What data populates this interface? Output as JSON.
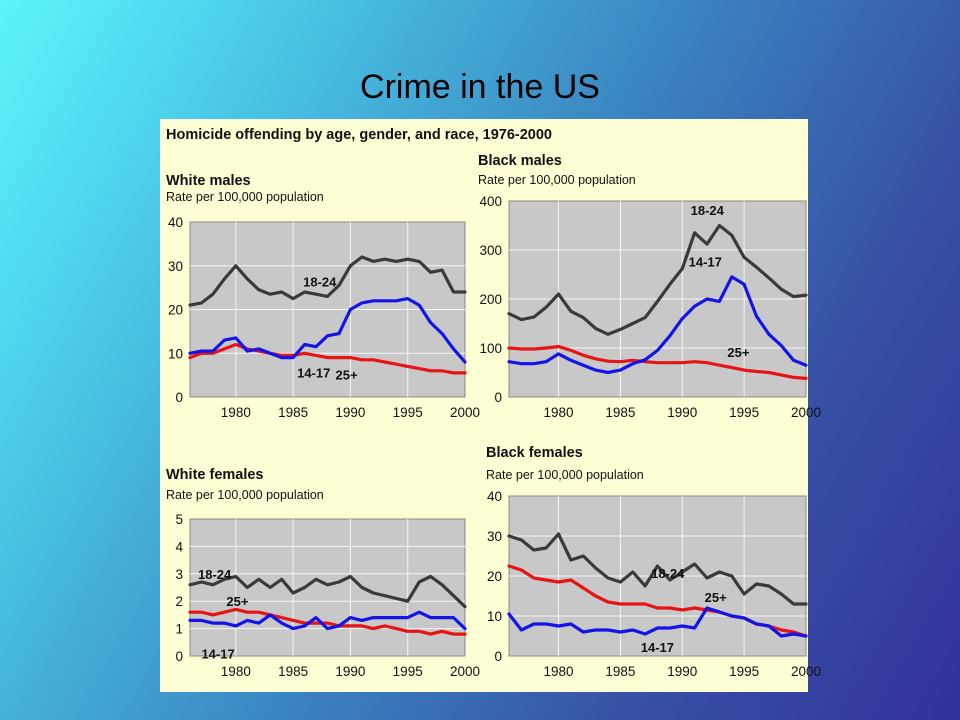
{
  "slide": {
    "title": "Crime in the US",
    "figure_title": "Homicide offending by age, gender, and race, 1976-2000"
  },
  "colors": {
    "background_start": "#5cf6fb",
    "background_end": "#33329a",
    "figure_background": "#ffffd6",
    "plot_background": "#c8c8c8",
    "series_18_24": "#3a3a3a",
    "series_14_17": "#1414e6",
    "series_25_plus": "#e61414"
  },
  "chart_data": [
    {
      "type": "line",
      "title": "White males",
      "subtitle": "Rate per 100,000 population",
      "xlim": [
        1976,
        2000
      ],
      "ylim": [
        0,
        40
      ],
      "xticks": [
        1980,
        1985,
        1990,
        1995,
        2000
      ],
      "yticks": [
        0,
        10,
        20,
        30,
        40
      ],
      "grid": true,
      "x": [
        1976,
        1977,
        1978,
        1979,
        1980,
        1981,
        1982,
        1983,
        1984,
        1985,
        1986,
        1987,
        1988,
        1989,
        1990,
        1991,
        1992,
        1993,
        1994,
        1995,
        1996,
        1997,
        1998,
        1999,
        2000
      ],
      "series": [
        {
          "name": "18-24",
          "color": "#3a3a3a",
          "values": [
            21,
            21.5,
            23.5,
            27,
            30,
            27,
            24.5,
            23.5,
            24,
            22.5,
            24,
            23.5,
            23,
            25.5,
            30,
            32,
            31,
            31.5,
            31,
            31.5,
            31,
            28.5,
            29,
            24,
            24
          ]
        },
        {
          "name": "14-17",
          "color": "#1414e6",
          "values": [
            10,
            10.5,
            10.5,
            13,
            13.5,
            10.5,
            11,
            10,
            9,
            9,
            12,
            11.5,
            14,
            14.5,
            20,
            21.5,
            22,
            22,
            22,
            22.5,
            21,
            17,
            14.5,
            11,
            8
          ]
        },
        {
          "name": "25+",
          "color": "#e61414",
          "values": [
            9,
            10,
            10,
            11,
            12,
            11,
            10.5,
            10,
            9.5,
            9.5,
            10,
            9.5,
            9,
            9,
            9,
            8.5,
            8.5,
            8,
            7.5,
            7,
            6.5,
            6,
            6,
            5.5,
            5.5
          ]
        }
      ]
    },
    {
      "type": "line",
      "title": "Black males",
      "subtitle": "Rate per 100,000 population",
      "xlim": [
        1976,
        2000
      ],
      "ylim": [
        0,
        400
      ],
      "xticks": [
        1980,
        1985,
        1990,
        1995,
        2000
      ],
      "yticks": [
        0,
        100,
        200,
        300,
        400
      ],
      "grid": true,
      "x": [
        1976,
        1977,
        1978,
        1979,
        1980,
        1981,
        1982,
        1983,
        1984,
        1985,
        1986,
        1987,
        1988,
        1989,
        1990,
        1991,
        1992,
        1993,
        1994,
        1995,
        1996,
        1997,
        1998,
        1999,
        2000
      ],
      "series": [
        {
          "name": "18-24",
          "color": "#3a3a3a",
          "values": [
            170,
            158,
            163,
            183,
            210,
            175,
            162,
            140,
            128,
            138,
            150,
            162,
            195,
            230,
            262,
            335,
            312,
            350,
            330,
            285,
            265,
            243,
            220,
            205,
            208
          ]
        },
        {
          "name": "14-17",
          "color": "#1414e6",
          "values": [
            72,
            68,
            68,
            72,
            88,
            75,
            65,
            55,
            50,
            55,
            68,
            76,
            95,
            125,
            160,
            185,
            200,
            195,
            245,
            230,
            165,
            128,
            105,
            75,
            65
          ]
        },
        {
          "name": "25+",
          "color": "#e61414",
          "values": [
            100,
            98,
            98,
            100,
            103,
            95,
            85,
            78,
            73,
            72,
            75,
            72,
            70,
            70,
            70,
            72,
            70,
            65,
            60,
            55,
            52,
            50,
            45,
            40,
            38
          ]
        }
      ]
    },
    {
      "type": "line",
      "title": "White females",
      "subtitle": "Rate per 100,000 population",
      "xlim": [
        1976,
        2000
      ],
      "ylim": [
        0,
        5
      ],
      "xticks": [
        1980,
        1985,
        1990,
        1995,
        2000
      ],
      "yticks": [
        0,
        1,
        2,
        3,
        4,
        5
      ],
      "grid": true,
      "x": [
        1976,
        1977,
        1978,
        1979,
        1980,
        1981,
        1982,
        1983,
        1984,
        1985,
        1986,
        1987,
        1988,
        1989,
        1990,
        1991,
        1992,
        1993,
        1994,
        1995,
        1996,
        1997,
        1998,
        1999,
        2000
      ],
      "series": [
        {
          "name": "18-24",
          "color": "#3a3a3a",
          "values": [
            2.6,
            2.7,
            2.6,
            2.8,
            2.9,
            2.5,
            2.8,
            2.5,
            2.8,
            2.3,
            2.5,
            2.8,
            2.6,
            2.7,
            2.9,
            2.5,
            2.3,
            2.2,
            2.1,
            2.0,
            2.7,
            2.9,
            2.6,
            2.2,
            1.8
          ]
        },
        {
          "name": "14-17",
          "color": "#1414e6",
          "values": [
            1.3,
            1.3,
            1.2,
            1.2,
            1.1,
            1.3,
            1.2,
            1.5,
            1.2,
            1.0,
            1.1,
            1.4,
            1.0,
            1.1,
            1.4,
            1.3,
            1.4,
            1.4,
            1.4,
            1.4,
            1.6,
            1.4,
            1.4,
            1.4,
            1.0
          ]
        },
        {
          "name": "25+",
          "color": "#e61414",
          "values": [
            1.6,
            1.6,
            1.5,
            1.6,
            1.7,
            1.6,
            1.6,
            1.5,
            1.4,
            1.3,
            1.2,
            1.2,
            1.2,
            1.1,
            1.1,
            1.1,
            1.0,
            1.1,
            1.0,
            0.9,
            0.9,
            0.8,
            0.9,
            0.8,
            0.8
          ]
        }
      ]
    },
    {
      "type": "line",
      "title": "Black females",
      "subtitle": "Rate per 100,000 population",
      "xlim": [
        1976,
        2000
      ],
      "ylim": [
        0,
        40
      ],
      "xticks": [
        1980,
        1985,
        1990,
        1995,
        2000
      ],
      "yticks": [
        0,
        10,
        20,
        30,
        40
      ],
      "grid": true,
      "x": [
        1976,
        1977,
        1978,
        1979,
        1980,
        1981,
        1982,
        1983,
        1984,
        1985,
        1986,
        1987,
        1988,
        1989,
        1990,
        1991,
        1992,
        1993,
        1994,
        1995,
        1996,
        1997,
        1998,
        1999,
        2000
      ],
      "series": [
        {
          "name": "18-24",
          "color": "#3a3a3a",
          "values": [
            30,
            29,
            26.5,
            27,
            30.5,
            24,
            25,
            22,
            19.5,
            18.5,
            21,
            17.5,
            22.5,
            19,
            21,
            23,
            19.5,
            21,
            20,
            15.5,
            18,
            17.5,
            15.5,
            13,
            13
          ]
        },
        {
          "name": "14-17",
          "color": "#1414e6",
          "values": [
            10.5,
            6.5,
            8,
            8,
            7.5,
            8,
            6,
            6.5,
            6.5,
            6,
            6.5,
            5.5,
            7,
            7,
            7.5,
            7,
            12,
            11,
            10,
            9.5,
            8,
            7.5,
            5,
            5.5,
            5
          ]
        },
        {
          "name": "25+",
          "color": "#e61414",
          "values": [
            22.5,
            21.5,
            19.5,
            19,
            18.5,
            19,
            17,
            15,
            13.5,
            13,
            13,
            13,
            12,
            12,
            11.5,
            12,
            11.5,
            11,
            10,
            9.5,
            8,
            7.5,
            6.5,
            6,
            5
          ]
        }
      ]
    }
  ]
}
